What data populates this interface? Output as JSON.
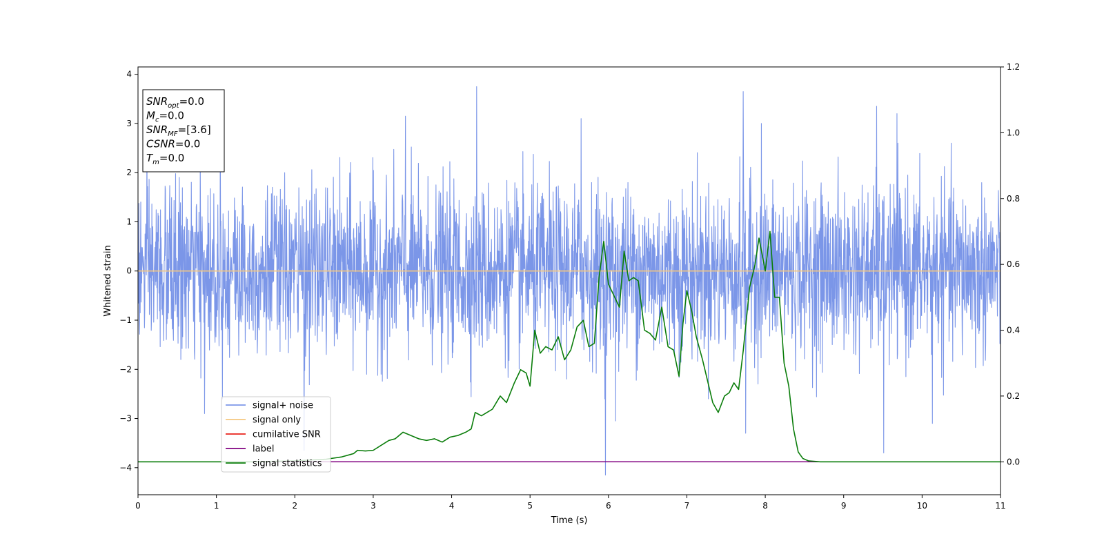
{
  "chart_data": {
    "type": "line",
    "xlabel": "Time (s)",
    "ylabel": "Whitened strain",
    "xlim": [
      0,
      11
    ],
    "ylim": [
      -4.55,
      4.15
    ],
    "y2lim": [
      -0.1,
      1.2
    ],
    "x_ticks": [
      0,
      1,
      2,
      3,
      4,
      5,
      6,
      7,
      8,
      9,
      10,
      11
    ],
    "y_ticks": [
      -4,
      -3,
      -2,
      -1,
      0,
      1,
      2,
      3,
      4
    ],
    "y2_ticks": [
      0.0,
      0.2,
      0.4,
      0.6,
      0.8,
      1.0,
      1.2
    ],
    "grid": false,
    "legend_position": "lower-left",
    "info_box": [
      {
        "base": "SNR",
        "sub": "opt",
        "rest": "=0.0"
      },
      {
        "base": "M",
        "sub": "c",
        "rest": "=0.0"
      },
      {
        "base": "SNR",
        "sub": "MF",
        "rest": "=[3.6]"
      },
      {
        "base": "CSNR",
        "sub": "",
        "rest": "=0.0"
      },
      {
        "base": "T",
        "sub": "m",
        "rest": "=0.0"
      }
    ],
    "series": [
      {
        "name": "signal+ noise",
        "color": "#7b96e8",
        "axis": "left",
        "noise_std": 0.85,
        "noise_samples": 2800,
        "spikes": [
          {
            "x": 4.32,
            "y": 3.75
          },
          {
            "x": 7.72,
            "y": 3.65
          },
          {
            "x": 3.41,
            "y": 3.15
          },
          {
            "x": 5.65,
            "y": 3.1
          },
          {
            "x": 9.42,
            "y": 3.35
          },
          {
            "x": 7.95,
            "y": 3.0
          },
          {
            "x": 9.68,
            "y": 3.2
          },
          {
            "x": 1.05,
            "y": 2.85
          },
          {
            "x": 5.96,
            "y": -4.15
          },
          {
            "x": 9.51,
            "y": -3.7
          },
          {
            "x": 7.75,
            "y": -3.3
          },
          {
            "x": 2.12,
            "y": -3.65
          },
          {
            "x": 6.09,
            "y": -3.05
          },
          {
            "x": 10.13,
            "y": -3.1
          },
          {
            "x": 0.85,
            "y": -2.9
          }
        ]
      },
      {
        "name": "signal only",
        "color": "#f5c77e",
        "axis": "left",
        "x": [
          0,
          11
        ],
        "y": [
          0,
          0
        ]
      },
      {
        "name": "cumilative SNR",
        "color": "#e8211a",
        "axis": "right",
        "x": [],
        "y": []
      },
      {
        "name": "label",
        "color": "#800080",
        "axis": "right",
        "x": [
          0,
          11
        ],
        "y": [
          0.0,
          0.0
        ]
      },
      {
        "name": "signal statistics",
        "color": "#0a7d0a",
        "axis": "right",
        "x": [
          0,
          0.5,
          1,
          1.5,
          2,
          2.4,
          2.6,
          2.75,
          2.8,
          2.9,
          3.0,
          3.1,
          3.2,
          3.28,
          3.38,
          3.48,
          3.58,
          3.68,
          3.78,
          3.88,
          3.98,
          4.08,
          4.18,
          4.25,
          4.3,
          4.38,
          4.45,
          4.52,
          4.62,
          4.7,
          4.8,
          4.88,
          4.95,
          5.0,
          5.06,
          5.13,
          5.2,
          5.28,
          5.36,
          5.44,
          5.52,
          5.6,
          5.68,
          5.75,
          5.82,
          5.88,
          5.94,
          6.0,
          6.08,
          6.14,
          6.2,
          6.26,
          6.32,
          6.38,
          6.46,
          6.53,
          6.6,
          6.68,
          6.76,
          6.83,
          6.9,
          6.95,
          7.0,
          7.06,
          7.12,
          7.2,
          7.27,
          7.33,
          7.4,
          7.48,
          7.54,
          7.6,
          7.66,
          7.72,
          7.8,
          7.87,
          7.92,
          8.0,
          8.06,
          8.12,
          8.18,
          8.24,
          8.3,
          8.36,
          8.42,
          8.48,
          8.55,
          8.7,
          9.0,
          9.5,
          10,
          10.5,
          11
        ],
        "y": [
          0.0,
          0.0,
          0.0,
          0.0,
          0.003,
          0.008,
          0.015,
          0.025,
          0.035,
          0.033,
          0.035,
          0.05,
          0.065,
          0.07,
          0.09,
          0.08,
          0.07,
          0.065,
          0.07,
          0.06,
          0.075,
          0.08,
          0.09,
          0.1,
          0.15,
          0.14,
          0.15,
          0.16,
          0.2,
          0.18,
          0.24,
          0.28,
          0.27,
          0.23,
          0.4,
          0.33,
          0.35,
          0.34,
          0.38,
          0.31,
          0.34,
          0.41,
          0.43,
          0.35,
          0.36,
          0.56,
          0.67,
          0.54,
          0.5,
          0.47,
          0.64,
          0.55,
          0.56,
          0.55,
          0.4,
          0.39,
          0.37,
          0.47,
          0.35,
          0.34,
          0.26,
          0.42,
          0.52,
          0.46,
          0.38,
          0.31,
          0.24,
          0.18,
          0.15,
          0.2,
          0.21,
          0.24,
          0.22,
          0.34,
          0.53,
          0.6,
          0.68,
          0.58,
          0.7,
          0.5,
          0.5,
          0.3,
          0.23,
          0.1,
          0.03,
          0.01,
          0.003,
          0.0,
          0.0,
          0.0,
          0.0,
          0.0,
          0.0
        ]
      }
    ]
  }
}
